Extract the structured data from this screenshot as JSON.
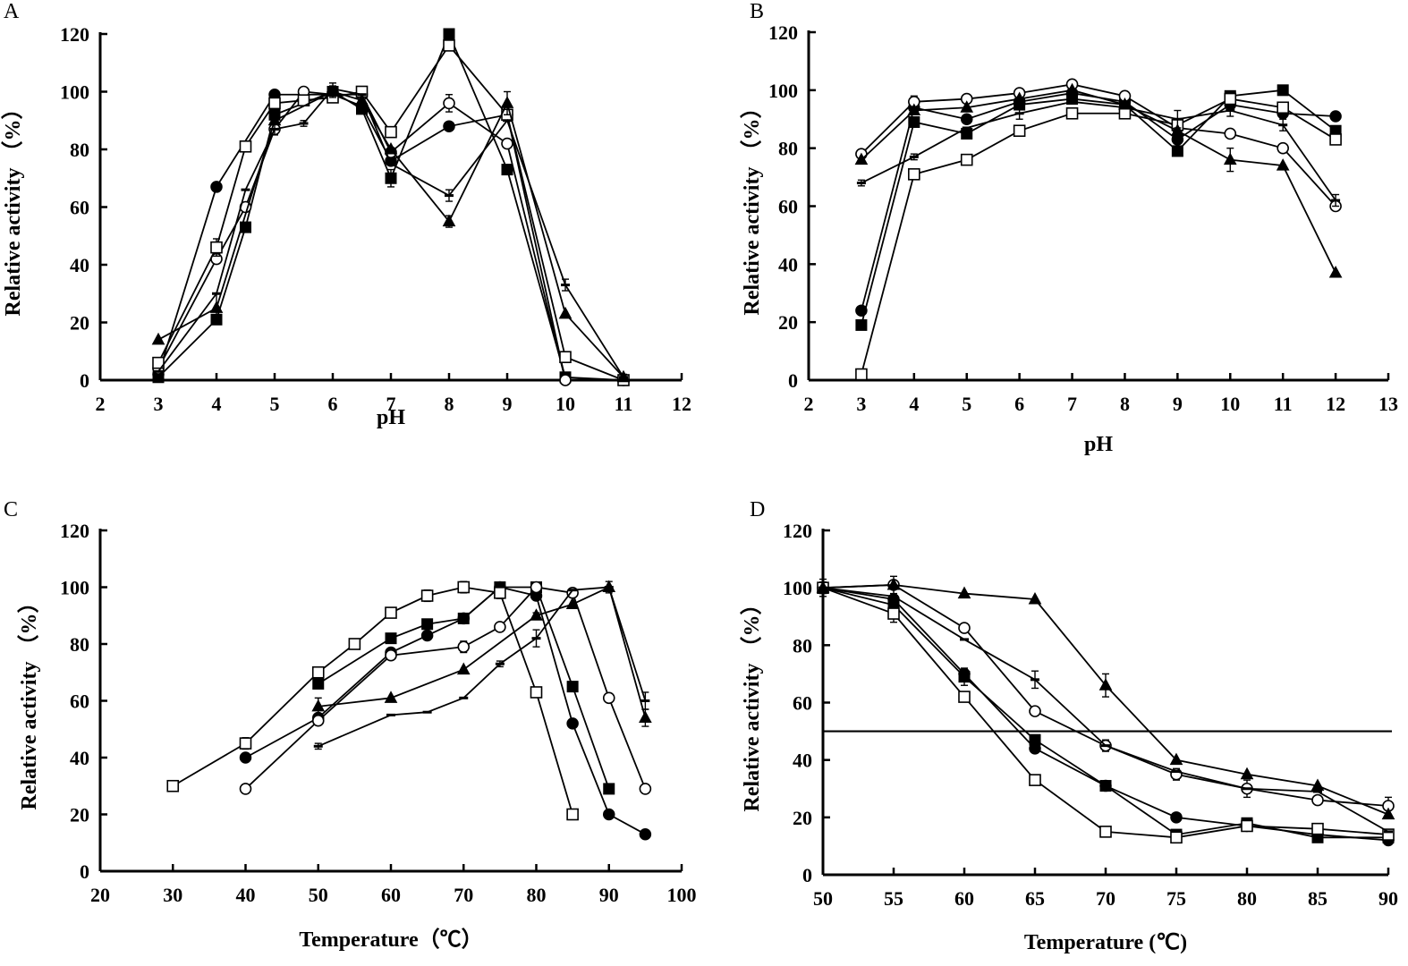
{
  "chart_data": [
    {
      "panel": "A",
      "type": "line",
      "xlabel": "pH",
      "ylabel": "Relative activity （%）",
      "xlim": [
        2,
        12
      ],
      "ylim": [
        0,
        120
      ],
      "xticks": [
        2,
        3,
        4,
        5,
        6,
        7,
        8,
        9,
        10,
        11,
        12
      ],
      "yticks": [
        0,
        20,
        40,
        60,
        80,
        100,
        120
      ],
      "grid": false,
      "series": [
        {
          "marker": "filled-circle",
          "x": [
            3,
            4,
            5,
            6,
            6.5,
            7,
            8,
            9,
            10
          ],
          "y": [
            2,
            67,
            99,
            99,
            95,
            76,
            88,
            92,
            0
          ],
          "err": [
            0,
            0,
            0,
            0,
            0,
            0,
            0,
            0,
            0
          ]
        },
        {
          "marker": "filled-square",
          "x": [
            3,
            4,
            4.5,
            5,
            6,
            6.5,
            7,
            8,
            9,
            10,
            11
          ],
          "y": [
            1,
            21,
            53,
            92,
            100,
            94,
            70,
            120,
            73,
            1,
            0
          ],
          "err": [
            0,
            0,
            0,
            0,
            0,
            0,
            3,
            0,
            0,
            0,
            0
          ]
        },
        {
          "marker": "open-circle",
          "x": [
            3,
            4,
            4.5,
            5,
            5.5,
            6,
            6.5,
            7,
            8,
            9,
            10,
            11
          ],
          "y": [
            4,
            42,
            60,
            87,
            100,
            99,
            99,
            79,
            96,
            82,
            0,
            0
          ],
          "err": [
            0,
            0,
            0,
            0,
            0,
            0,
            0,
            0,
            3,
            0,
            0,
            0
          ]
        },
        {
          "marker": "open-square",
          "x": [
            3,
            4,
            4.5,
            5,
            5.5,
            6,
            6.5,
            7,
            8,
            9,
            10,
            11
          ],
          "y": [
            6,
            46,
            81,
            96,
            97,
            98,
            100,
            86,
            116,
            92,
            8,
            0
          ],
          "err": [
            0,
            3,
            0,
            0,
            0,
            0,
            0,
            0,
            0,
            0,
            0,
            0
          ]
        },
        {
          "marker": "filled-triangle",
          "x": [
            3,
            4,
            5,
            6,
            6.5,
            7,
            8,
            9,
            10,
            11
          ],
          "y": [
            14,
            25,
            90,
            100,
            97,
            80,
            55,
            96,
            23,
            1
          ],
          "err": [
            0,
            5,
            0,
            2,
            0,
            0,
            2,
            4,
            0,
            1
          ]
        },
        {
          "marker": "dash",
          "x": [
            3,
            4,
            4.5,
            5,
            5.5,
            6,
            6.5,
            7,
            8,
            9,
            10,
            11
          ],
          "y": [
            3,
            30,
            66,
            87,
            89,
            101,
            99,
            75,
            64,
            90,
            33,
            1
          ],
          "err": [
            0,
            0,
            0,
            2,
            1,
            2,
            0,
            0,
            2,
            0,
            2,
            1
          ]
        }
      ]
    },
    {
      "panel": "B",
      "type": "line",
      "xlabel": "pH",
      "ylabel": "Relative activity （%）",
      "xlim": [
        2,
        13
      ],
      "ylim": [
        0,
        120
      ],
      "xticks": [
        2,
        3,
        4,
        5,
        6,
        7,
        8,
        9,
        10,
        11,
        12,
        13
      ],
      "yticks": [
        0,
        20,
        40,
        60,
        80,
        100,
        120
      ],
      "grid": false,
      "series": [
        {
          "marker": "filled-circle",
          "x": [
            3,
            4,
            5,
            6,
            7,
            8,
            9,
            10,
            11,
            12
          ],
          "y": [
            24,
            94,
            90,
            96,
            99,
            96,
            83,
            95,
            92,
            91
          ],
          "err": [
            0,
            0,
            0,
            0,
            0,
            0,
            0,
            0,
            0,
            0
          ]
        },
        {
          "marker": "filled-square",
          "x": [
            3,
            4,
            5,
            6,
            7,
            8,
            9,
            10,
            11,
            12
          ],
          "y": [
            19,
            89,
            85,
            95,
            97,
            95,
            79,
            98,
            100,
            86
          ],
          "err": [
            0,
            0,
            0,
            0,
            0,
            0,
            0,
            0,
            0,
            0
          ]
        },
        {
          "marker": "open-circle",
          "x": [
            3,
            4,
            5,
            6,
            7,
            8,
            9,
            10,
            11,
            12
          ],
          "y": [
            78,
            96,
            97,
            99,
            102,
            98,
            87,
            85,
            80,
            60
          ],
          "err": [
            0,
            2,
            0,
            0,
            0,
            0,
            0,
            0,
            0,
            0
          ]
        },
        {
          "marker": "open-square",
          "x": [
            3,
            4,
            5,
            6,
            7,
            8,
            9,
            10,
            11,
            12
          ],
          "y": [
            2,
            71,
            76,
            86,
            92,
            92,
            88,
            97,
            94,
            83
          ],
          "err": [
            0,
            0,
            0,
            0,
            0,
            0,
            0,
            0,
            0,
            0
          ]
        },
        {
          "marker": "filled-triangle",
          "x": [
            3,
            4,
            5,
            6,
            7,
            8,
            9,
            10,
            11,
            12
          ],
          "y": [
            76,
            93,
            94,
            97,
            100,
            95,
            86,
            76,
            74,
            37
          ],
          "err": [
            0,
            0,
            0,
            0,
            0,
            0,
            0,
            4,
            0,
            0
          ]
        },
        {
          "marker": "dash",
          "x": [
            3,
            4,
            5,
            6,
            7,
            8,
            9,
            10,
            11,
            12
          ],
          "y": [
            68,
            77,
            87,
            92,
            96,
            94,
            90,
            93,
            88,
            62
          ],
          "err": [
            1,
            1,
            0,
            2,
            0,
            0,
            3,
            2,
            2,
            2
          ]
        }
      ]
    },
    {
      "panel": "C",
      "type": "line",
      "xlabel": "Temperature（℃）",
      "ylabel": "Relative activity （%）",
      "xlim": [
        20,
        100
      ],
      "ylim": [
        0,
        120
      ],
      "xticks": [
        20,
        30,
        40,
        50,
        60,
        70,
        80,
        90,
        100
      ],
      "yticks": [
        0,
        20,
        40,
        60,
        80,
        100,
        120
      ],
      "grid": false,
      "series": [
        {
          "marker": "filled-circle",
          "x": [
            40,
            50,
            60,
            65,
            70,
            75,
            80,
            85,
            90,
            95
          ],
          "y": [
            40,
            54,
            77,
            83,
            89,
            100,
            97,
            52,
            20,
            13
          ],
          "err": [
            0,
            0,
            0,
            0,
            0,
            0,
            0,
            0,
            0,
            0
          ]
        },
        {
          "marker": "filled-square",
          "x": [
            50,
            60,
            65,
            70,
            75,
            80,
            85,
            90
          ],
          "y": [
            66,
            82,
            87,
            89,
            100,
            100,
            65,
            29
          ],
          "err": [
            0,
            0,
            0,
            0,
            0,
            0,
            0,
            0
          ]
        },
        {
          "marker": "open-circle",
          "x": [
            40,
            50,
            60,
            70,
            75,
            80,
            85,
            90,
            95
          ],
          "y": [
            29,
            53,
            76,
            79,
            86,
            100,
            98,
            61,
            29
          ],
          "err": [
            0,
            0,
            0,
            2,
            0,
            0,
            0,
            0,
            0
          ]
        },
        {
          "marker": "open-square",
          "x": [
            30,
            40,
            50,
            55,
            60,
            65,
            70,
            75,
            80,
            85
          ],
          "y": [
            30,
            45,
            70,
            80,
            91,
            97,
            100,
            98,
            63,
            20
          ],
          "err": [
            0,
            2,
            0,
            0,
            0,
            2,
            2,
            2,
            0,
            0
          ]
        },
        {
          "marker": "filled-triangle",
          "x": [
            50,
            60,
            70,
            80,
            85,
            90,
            95
          ],
          "y": [
            58,
            61,
            71,
            90,
            94,
            100,
            54
          ],
          "err": [
            3,
            0,
            0,
            1,
            0,
            2,
            3
          ]
        },
        {
          "marker": "dash",
          "x": [
            50,
            60,
            65,
            70,
            75,
            80,
            85,
            90,
            95
          ],
          "y": [
            44,
            55,
            56,
            61,
            73,
            82,
            99,
            100,
            60
          ],
          "err": [
            1,
            0,
            0,
            0,
            1,
            3,
            0,
            0,
            3
          ]
        }
      ]
    },
    {
      "panel": "D",
      "type": "line",
      "xlabel": "Temperature (℃)",
      "ylabel": "Relative activity （%）",
      "xlim": [
        50,
        90
      ],
      "ylim": [
        0,
        120
      ],
      "xticks": [
        50,
        55,
        60,
        65,
        70,
        75,
        80,
        85,
        90
      ],
      "yticks": [
        0,
        20,
        40,
        60,
        80,
        100,
        120
      ],
      "grid": false,
      "reference_line_y": 50,
      "series": [
        {
          "marker": "filled-circle",
          "x": [
            50,
            55,
            60,
            65,
            70,
            75,
            80,
            85,
            90
          ],
          "y": [
            100,
            96,
            70,
            44,
            31,
            20,
            17,
            14,
            12
          ],
          "err": [
            2,
            0,
            0,
            0,
            0,
            0,
            0,
            0,
            0
          ]
        },
        {
          "marker": "filled-square",
          "x": [
            50,
            55,
            60,
            65,
            70,
            75,
            80,
            85,
            90
          ],
          "y": [
            100,
            94,
            69,
            47,
            31,
            14,
            18,
            13,
            13
          ],
          "err": [
            3,
            0,
            3,
            0,
            0,
            0,
            0,
            0,
            0
          ]
        },
        {
          "marker": "open-circle",
          "x": [
            50,
            55,
            60,
            65,
            70,
            75,
            80,
            85,
            90
          ],
          "y": [
            100,
            101,
            86,
            57,
            45,
            35,
            30,
            26,
            24
          ],
          "err": [
            0,
            3,
            0,
            0,
            2,
            2,
            3,
            0,
            3
          ]
        },
        {
          "marker": "open-square",
          "x": [
            50,
            55,
            60,
            65,
            70,
            75,
            80,
            85,
            90
          ],
          "y": [
            100,
            91,
            62,
            33,
            15,
            13,
            17,
            16,
            14
          ],
          "err": [
            0,
            3,
            0,
            0,
            0,
            0,
            0,
            0,
            0
          ]
        },
        {
          "marker": "filled-triangle",
          "x": [
            50,
            55,
            60,
            65,
            70,
            75,
            80,
            85,
            90
          ],
          "y": [
            100,
            101,
            98,
            96,
            66,
            40,
            35,
            31,
            21
          ],
          "err": [
            0,
            0,
            0,
            0,
            4,
            0,
            0,
            0,
            0
          ]
        },
        {
          "marker": "dash",
          "x": [
            50,
            55,
            60,
            65,
            70,
            75,
            80,
            85,
            90
          ],
          "y": [
            100,
            97,
            82,
            68,
            45,
            36,
            30,
            29,
            15
          ],
          "err": [
            0,
            0,
            0,
            3,
            0,
            0,
            0,
            0,
            0
          ]
        }
      ]
    }
  ]
}
